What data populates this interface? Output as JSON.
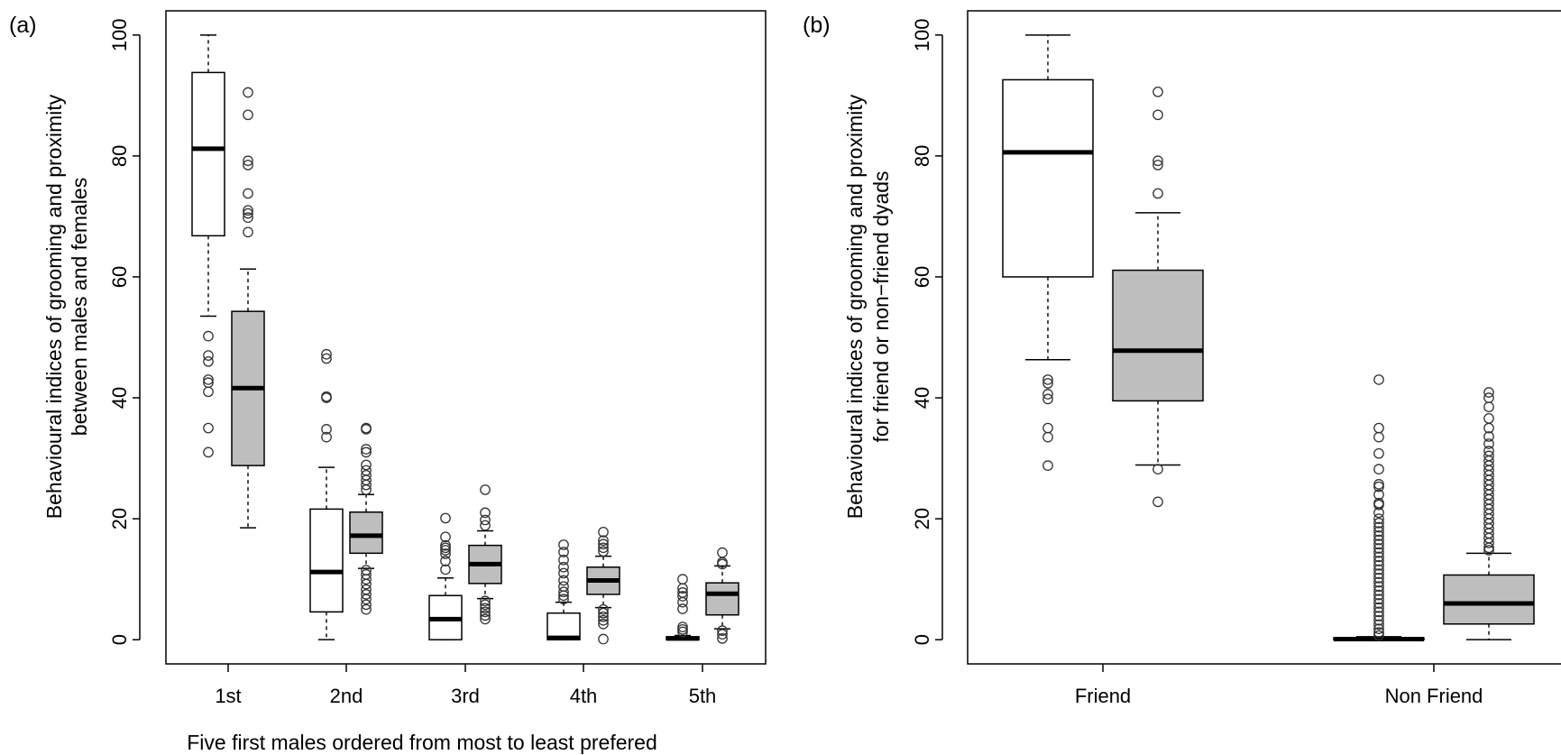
{
  "chart_data": [
    {
      "type": "box",
      "panel_label": "(a)",
      "xlabel": "Five first males ordered from most to least prefered",
      "ylabel_lines": [
        "Behavioural indices of grooming and proximity",
        "between males and females"
      ],
      "categories": [
        "1st",
        "2nd",
        "3rd",
        "4th",
        "5th"
      ],
      "yticks": [
        0,
        20,
        40,
        60,
        80,
        100
      ],
      "ylim": [
        -4,
        104
      ],
      "groups": [
        {
          "fill": "#ffffff",
          "boxes": [
            {
              "category": "1st",
              "whisker_low": 53.5,
              "q1": 66.8,
              "median": 81.2,
              "q3": 93.8,
              "whisker_high": 100,
              "outliers": [
                50.2,
                47,
                46,
                43,
                42.5,
                41,
                35,
                31
              ]
            },
            {
              "category": "2nd",
              "whisker_low": 0,
              "q1": 4.6,
              "median": 11.2,
              "q3": 21.6,
              "whisker_high": 28.5,
              "outliers": [
                47.2,
                46.5,
                40.2,
                40,
                34.8,
                33.5
              ]
            },
            {
              "category": "3rd",
              "whisker_low": 0,
              "q1": 0,
              "median": 3.4,
              "q3": 7.3,
              "whisker_high": 10.2,
              "outliers": [
                20.1,
                17,
                15.6,
                15.2,
                14.8,
                14.2,
                13,
                11.6
              ]
            },
            {
              "category": "4th",
              "whisker_low": 0,
              "q1": 0,
              "median": 0.3,
              "q3": 4.4,
              "whisker_high": 6.2,
              "outliers": [
                15.7,
                14.5,
                13.2,
                12,
                11,
                9.8,
                8.8,
                7.9,
                7.3,
                6.7
              ]
            },
            {
              "category": "5th",
              "whisker_low": 0,
              "q1": 0,
              "median": 0.2,
              "q3": 0.5,
              "whisker_high": 0.7,
              "outliers": [
                10,
                8.5,
                7.8,
                7.2,
                6.2,
                5.1,
                2.1,
                1.7,
                1.3
              ]
            }
          ]
        },
        {
          "fill": "#bebebe",
          "boxes": [
            {
              "category": "1st",
              "whisker_low": 18.5,
              "q1": 28.8,
              "median": 41.6,
              "q3": 54.3,
              "whisker_high": 61.3,
              "outliers": [
                90.5,
                86.8,
                79.2,
                78.5,
                73.8,
                71,
                70.5,
                69.8,
                67.4
              ]
            },
            {
              "category": "2nd",
              "whisker_low": 11.8,
              "q1": 14.3,
              "median": 17.2,
              "q3": 21.1,
              "whisker_high": 24,
              "outliers": [
                35,
                34.8,
                31.5,
                31,
                28.9,
                28,
                27.2,
                26.4,
                25.6,
                24.8,
                11.5,
                10.8,
                10,
                9.2,
                8.3,
                7.5,
                6.7,
                5.8,
                5
              ]
            },
            {
              "category": "3rd",
              "whisker_low": 6.8,
              "q1": 9.3,
              "median": 12.5,
              "q3": 15.6,
              "whisker_high": 18,
              "outliers": [
                24.8,
                21,
                19.8,
                18.9,
                6.4,
                5.8,
                5.2,
                4.6,
                4,
                3.4
              ]
            },
            {
              "category": "4th",
              "whisker_low": 5.3,
              "q1": 7.5,
              "median": 9.8,
              "q3": 12,
              "whisker_high": 13.8,
              "outliers": [
                17.8,
                16.4,
                15.8,
                15.2,
                14.6,
                5,
                4.4,
                3.8,
                3.2,
                2.6,
                0.1
              ]
            },
            {
              "category": "5th",
              "whisker_low": 1.8,
              "q1": 4.1,
              "median": 7.6,
              "q3": 9.4,
              "whisker_high": 12.2,
              "outliers": [
                14.4,
                12.8,
                12.5,
                1.5,
                0.9,
                0.2
              ]
            }
          ]
        }
      ]
    },
    {
      "type": "box",
      "panel_label": "(b)",
      "xlabel": "",
      "ylabel_lines": [
        "Behavioural indices of grooming and proximity",
        "for friend or non−friend dyads"
      ],
      "categories": [
        "Friend",
        "Non Friend"
      ],
      "yticks": [
        0,
        20,
        40,
        60,
        80,
        100
      ],
      "ylim": [
        -4,
        104
      ],
      "groups": [
        {
          "fill": "#ffffff",
          "boxes": [
            {
              "category": "Friend",
              "whisker_low": 46.3,
              "q1": 60,
              "median": 80.6,
              "q3": 92.6,
              "whisker_high": 100,
              "outliers": [
                43,
                42.4,
                40.6,
                39.8,
                35,
                33.5,
                28.8
              ]
            },
            {
              "category": "Non Friend",
              "whisker_low": 0,
              "q1": 0,
              "median": 0.1,
              "q3": 0.3,
              "whisker_high": 0.5,
              "outliers": [
                43,
                35,
                33.5,
                30.8,
                28.2,
                25.7,
                25.3,
                24,
                22.6,
                22.3,
                21,
                20,
                19.3,
                18.6,
                17.9,
                17.2,
                16.5,
                15.8,
                15.1,
                14.4,
                13.7,
                13,
                12.3,
                11.6,
                10.9,
                10.2,
                9.5,
                8.8,
                8.1,
                7.4,
                6.7,
                6,
                5.3,
                4.6,
                3.9,
                3.2,
                2.5,
                1.8,
                1.2,
                0.7
              ]
            }
          ]
        },
        {
          "fill": "#bebebe",
          "boxes": [
            {
              "category": "Friend",
              "whisker_low": 28.9,
              "q1": 39.5,
              "median": 47.8,
              "q3": 61.1,
              "whisker_high": 70.6,
              "outliers": [
                90.6,
                86.8,
                79.2,
                78.5,
                73.8,
                28.2,
                22.8
              ]
            },
            {
              "category": "Non Friend",
              "whisker_low": 0,
              "q1": 2.6,
              "median": 6,
              "q3": 10.7,
              "whisker_high": 14.3,
              "outliers": [
                40.9,
                40,
                38.5,
                36.6,
                35,
                33.6,
                32.4,
                31.2,
                30.4,
                29.6,
                28.8,
                28,
                27.2,
                26.4,
                25.6,
                24.8,
                24,
                23.2,
                22.4,
                21.6,
                20.8,
                20,
                19.2,
                18.4,
                17.6,
                16.8,
                16,
                15.2,
                14.8
              ]
            }
          ]
        }
      ]
    }
  ]
}
